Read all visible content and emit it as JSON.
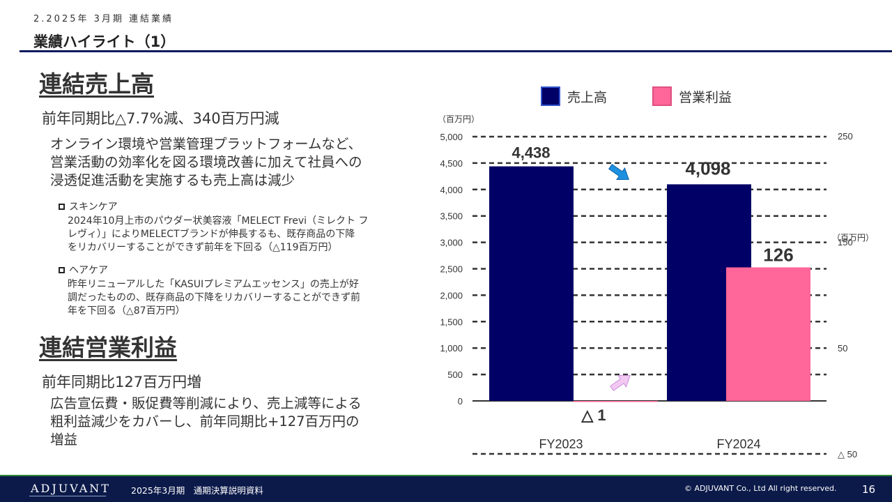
{
  "header": {
    "breadcrumb": "2.2025年 3月期 連結業績",
    "title": "業績ハイライト（1）"
  },
  "sales_section": {
    "heading": "連結売上高",
    "subheading": "前年同期比△7.7%減、340百万円減",
    "body": "オンライン環境や営業管理プラットフォームなど、\n営業活動の効率化を図る環境改善に加えて社員への\n浸透促進活動を実施するも売上高は減少",
    "bullets": [
      {
        "title": "スキンケア",
        "text": "2024年10月上市のパウダー状美容液「MELECT Frevi（ミレクト フ\nレヴィ）」によりMELECTブランドが伸長するも、既存商品の下降\nをリカバリーすることができず前年を下回る（△119百万円）"
      },
      {
        "title": "ヘアケア",
        "text": "昨年リニューアルした「KASUIプレミアムエッセンス」の売上が好\n調だったものの、既存商品の下降をリカバリーすることができず前\n年を下回る（△87百万円）"
      }
    ]
  },
  "profit_section": {
    "heading": "連結営業利益",
    "subheading": "前年同期比127百万円増",
    "body": "広告宣伝費・販促費等削減により、売上減等による\n粗利益減少をカバーし、前年同期比+127百万円の\n増益"
  },
  "chart_data": {
    "type": "bar",
    "categories": [
      "FY2023",
      "FY2024"
    ],
    "series": [
      {
        "name": "売上高",
        "axis": "left",
        "values": [
          4438,
          4098
        ],
        "labels": [
          "4,438",
          "4,098"
        ],
        "color": "#000066"
      },
      {
        "name": "営業利益",
        "axis": "right",
        "values": [
          -1,
          126
        ],
        "labels": [
          "△ 1",
          "126"
        ],
        "color": "#ff6699"
      }
    ],
    "left_axis": {
      "unit": "（百万円）",
      "ylim": [
        0,
        5000
      ],
      "ticks": [
        "5,000",
        "4,500",
        "4,000",
        "3,500",
        "3,000",
        "2,500",
        "2,000",
        "1,500",
        "1,000",
        "500",
        "0"
      ]
    },
    "right_axis": {
      "unit": "（百万円）",
      "ylim": [
        -50,
        250
      ],
      "ticks": [
        "250",
        "150",
        "50",
        "△ 50"
      ]
    },
    "grid": true,
    "legend": "top",
    "trend_arrows": [
      "decrease",
      "increase"
    ]
  },
  "footer": {
    "logo": "ADJUVANT",
    "document": "2025年3月期　通期決算説明資料",
    "copyright": "© ADJUVANT Co., Ltd All right reserved.",
    "page": "16"
  }
}
